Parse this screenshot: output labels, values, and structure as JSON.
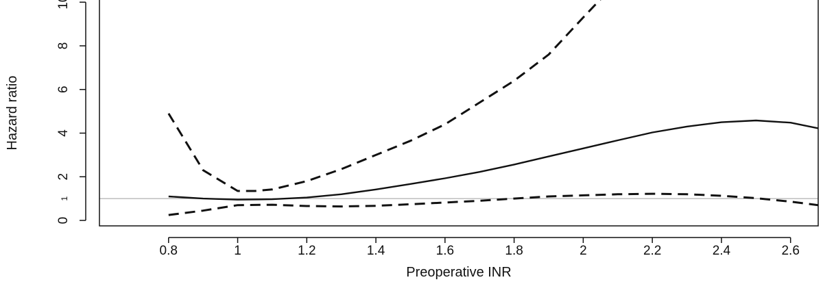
{
  "chart_data": {
    "type": "line",
    "title": "",
    "xlabel": "Preoperative INR",
    "ylabel": "Hazard ratio",
    "xlim": [
      0.6,
      2.68
    ],
    "ylim": [
      -0.25,
      10.1
    ],
    "x_ticks": [
      0.8,
      1,
      1.2,
      1.4,
      1.6,
      1.8,
      2,
      2.2,
      2.4,
      2.6
    ],
    "x_tick_labels": [
      "0.8",
      "1",
      "1.2",
      "1.4",
      "1.6",
      "1.8",
      "2",
      "2.2",
      "2.4",
      "2.6"
    ],
    "y_ticks": [
      0,
      2,
      4,
      6,
      8,
      10
    ],
    "y_tick_labels": [
      "0",
      "2",
      "4",
      "6",
      "8",
      "10"
    ],
    "reference_line": {
      "y": 1,
      "label": "1",
      "color": "#b0b0b0"
    },
    "grid": false,
    "series": [
      {
        "style": "solid",
        "x": [
          0.8,
          0.9,
          1.0,
          1.1,
          1.2,
          1.3,
          1.4,
          1.5,
          1.6,
          1.7,
          1.8,
          1.9,
          2.0,
          2.1,
          2.2,
          2.3,
          2.4,
          2.5,
          2.6,
          2.68
        ],
        "y": [
          1.1,
          1.0,
          0.95,
          0.97,
          1.05,
          1.2,
          1.42,
          1.67,
          1.93,
          2.22,
          2.56,
          2.93,
          3.3,
          3.67,
          4.03,
          4.3,
          4.5,
          4.58,
          4.48,
          4.22
        ]
      },
      {
        "style": "dashed",
        "x": [
          0.8,
          0.9,
          1.0,
          1.05,
          1.1,
          1.2,
          1.3,
          1.4,
          1.5,
          1.6,
          1.7,
          1.8,
          1.9,
          2.0,
          2.06
        ],
        "y": [
          4.9,
          2.3,
          1.35,
          1.35,
          1.42,
          1.8,
          2.35,
          3.0,
          3.65,
          4.4,
          5.4,
          6.4,
          7.6,
          9.3,
          10.3
        ]
      },
      {
        "style": "dashed",
        "x": [
          0.8,
          0.9,
          1.0,
          1.1,
          1.2,
          1.3,
          1.4,
          1.5,
          1.6,
          1.7,
          1.8,
          1.9,
          2.0,
          2.1,
          2.2,
          2.3,
          2.4,
          2.5,
          2.6,
          2.68
        ],
        "y": [
          0.25,
          0.45,
          0.7,
          0.72,
          0.66,
          0.64,
          0.67,
          0.74,
          0.82,
          0.9,
          1.0,
          1.1,
          1.15,
          1.2,
          1.22,
          1.2,
          1.13,
          1.02,
          0.86,
          0.7
        ]
      }
    ]
  }
}
